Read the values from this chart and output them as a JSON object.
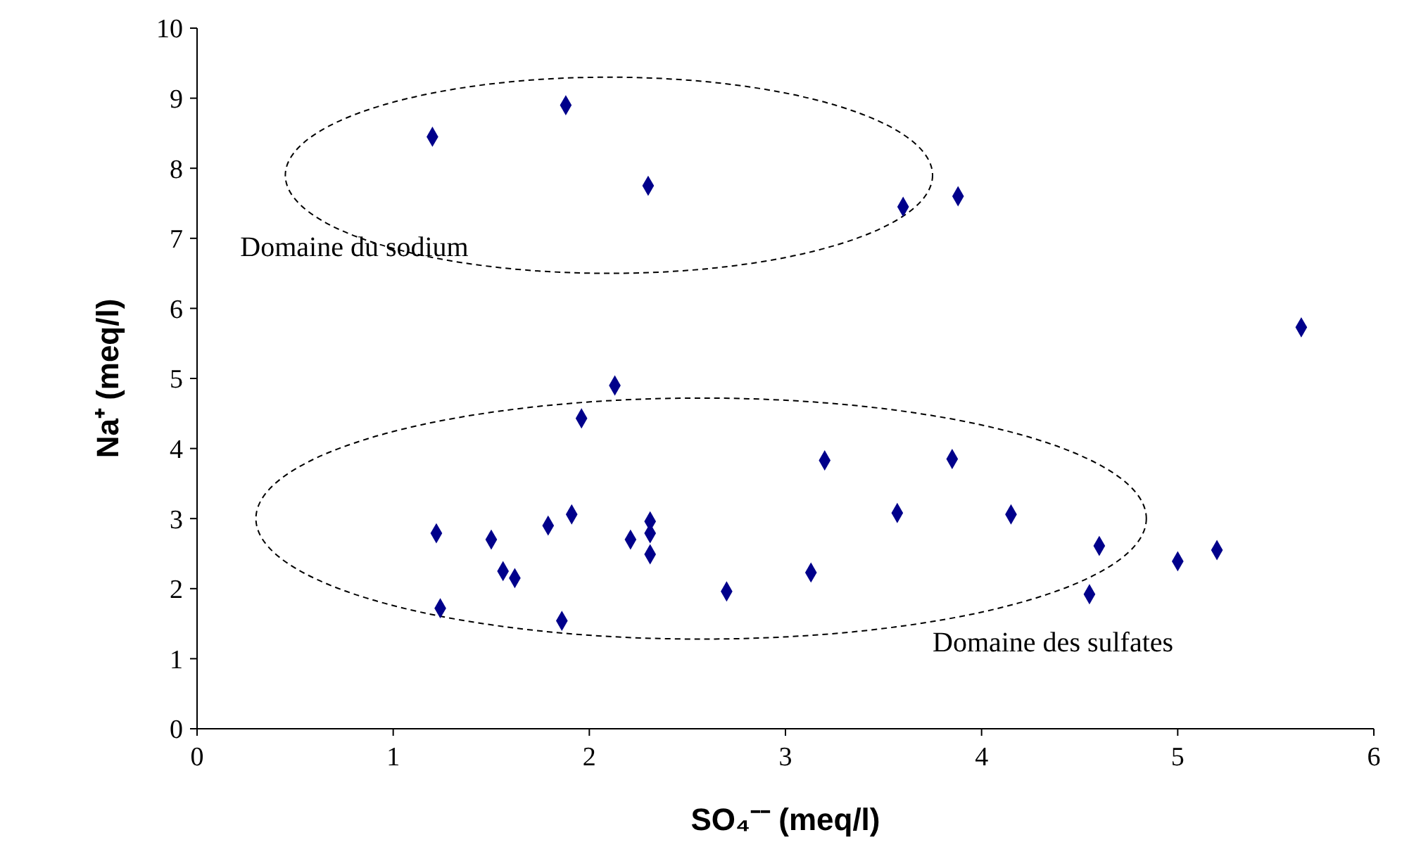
{
  "chart_data": {
    "type": "scatter",
    "xlabel": "SO₄⁻⁻ (meq/l)",
    "ylabel": "Na⁺ (meq/l)",
    "x": [
      1.2,
      1.88,
      2.3,
      3.6,
      3.88,
      5.63,
      2.13,
      1.96,
      1.22,
      1.5,
      1.56,
      1.62,
      1.79,
      1.91,
      1.24,
      1.86,
      2.21,
      2.31,
      2.31,
      2.31,
      2.7,
      3.13,
      3.2,
      3.57,
      3.85,
      4.15,
      4.6,
      4.55,
      5.0,
      5.2
    ],
    "series": [
      {
        "color": "#00008b",
        "values": [
          8.45,
          8.9,
          7.75,
          7.45,
          7.6,
          5.73,
          4.9,
          4.43,
          2.79,
          2.7,
          2.25,
          2.15,
          2.9,
          3.06,
          1.72,
          1.54,
          2.7,
          2.96,
          2.79,
          2.49,
          1.96,
          2.23,
          3.83,
          3.08,
          3.85,
          3.06,
          2.61,
          1.92,
          2.39,
          2.55
        ]
      }
    ],
    "xlim": [
      0,
      6
    ],
    "xticks": [
      0,
      1,
      2,
      3,
      4,
      5,
      6
    ],
    "ylim": [
      0,
      10
    ],
    "yticks": [
      0,
      1,
      2,
      3,
      4,
      5,
      6,
      7,
      8,
      9,
      10
    ],
    "grid": false,
    "marker": "diamond",
    "annotations": [
      "Domaine du sodium",
      "Domaine des sulfates"
    ]
  }
}
